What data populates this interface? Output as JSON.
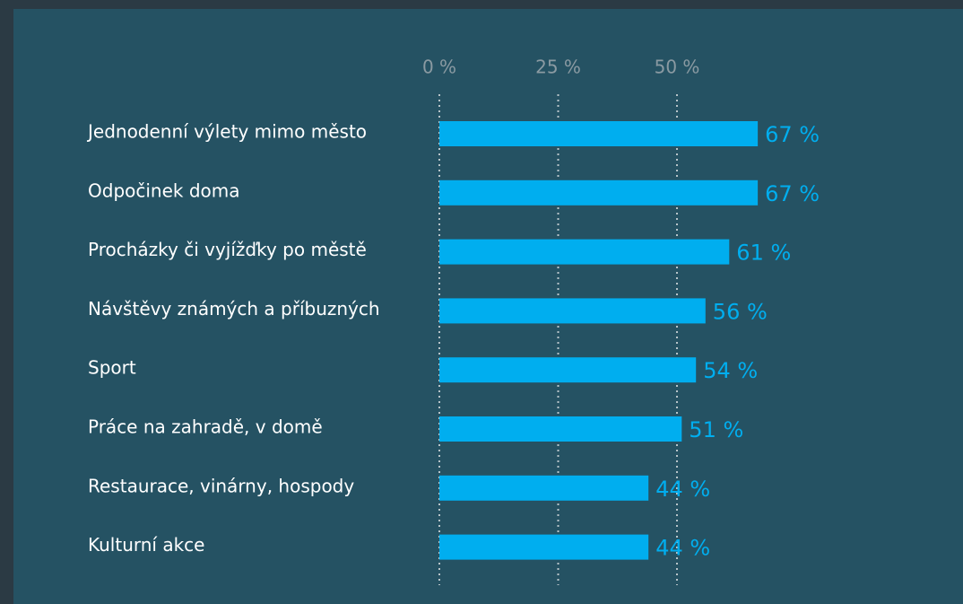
{
  "chart_data": {
    "type": "barh",
    "categories": [
      "Jednodenní výlety mimo město",
      "Odpočinek doma",
      "Procházky či vyjížďky po městě",
      "Návštěvy známých a příbuzných",
      "Sport",
      "Práce na zahradě, v domě",
      "Restaurace, vinárny, hospody",
      "Kulturní akce"
    ],
    "values": [
      67,
      67,
      61,
      56,
      54,
      51,
      44,
      44
    ],
    "value_labels": [
      "67 %",
      "67 %",
      "61 %",
      "56 %",
      "54 %",
      "51 %",
      "44 %",
      "44 %"
    ],
    "color": "#00aeef",
    "xlim": [
      0,
      100
    ],
    "xticks": [
      {
        "value": 0,
        "label": "0 %"
      },
      {
        "value": 25,
        "label": "25 %"
      },
      {
        "value": 50,
        "label": "50 %"
      }
    ],
    "grid": true
  }
}
